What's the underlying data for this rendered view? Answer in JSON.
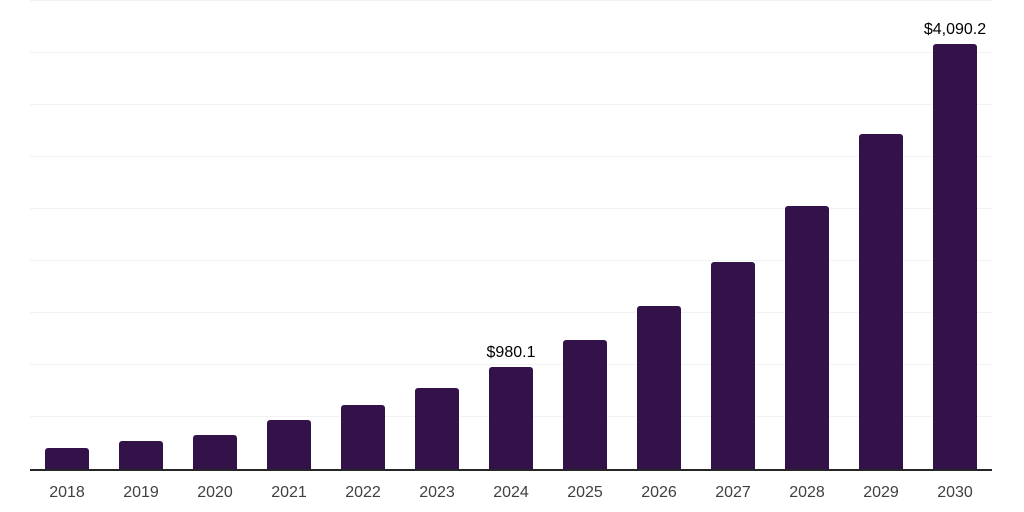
{
  "chart_data": {
    "type": "bar",
    "title": "",
    "xlabel": "",
    "ylabel": "",
    "categories": [
      "2018",
      "2019",
      "2020",
      "2021",
      "2022",
      "2023",
      "2024",
      "2025",
      "2026",
      "2027",
      "2028",
      "2029",
      "2030"
    ],
    "values": [
      205,
      265,
      330,
      470,
      615,
      775,
      980.1,
      1245,
      1570,
      1990,
      2530,
      3220,
      4090.2
    ],
    "data_labels": [
      "",
      "",
      "",
      "",
      "",
      "",
      "$980.1",
      "",
      "",
      "",
      "",
      "",
      "$4,090.2"
    ],
    "ylim": [
      0,
      4500
    ],
    "gridline_step": 500,
    "grid": "horizontal",
    "legend": "none",
    "colors": {
      "bar": "#331149",
      "gridline": "#f2f2f2",
      "axis_line": "#262626",
      "tick_label": "#404040",
      "data_label": "#000000",
      "background": "#ffffff"
    }
  }
}
